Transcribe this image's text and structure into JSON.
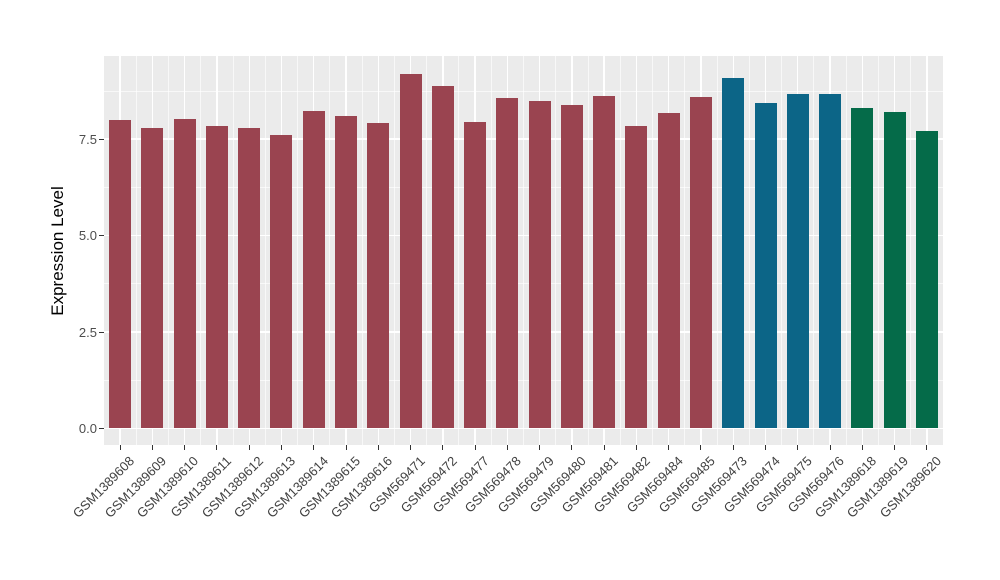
{
  "chart_data": {
    "type": "bar",
    "title": "",
    "xlabel": "",
    "ylabel": "Expression Level",
    "y_ticks": [
      0.0,
      2.5,
      5.0,
      7.5
    ],
    "y_tick_labels": [
      "0.0",
      "2.5",
      "5.0",
      "7.5"
    ],
    "y_minor_ticks": [
      1.25,
      3.75,
      6.25,
      8.75
    ],
    "ylim": [
      -0.45,
      9.65
    ],
    "grid": "white major and minor gridlines on gray panel",
    "legend_position": "none",
    "group_colors": {
      "maroon": "#9A4450",
      "teal": "#0C6587",
      "green": "#056B49"
    },
    "bars": [
      {
        "label": "GSM1389608",
        "value": 8.0,
        "group": "maroon"
      },
      {
        "label": "GSM1389609",
        "value": 7.8,
        "group": "maroon"
      },
      {
        "label": "GSM1389610",
        "value": 8.02,
        "group": "maroon"
      },
      {
        "label": "GSM1389611",
        "value": 7.85,
        "group": "maroon"
      },
      {
        "label": "GSM1389612",
        "value": 7.8,
        "group": "maroon"
      },
      {
        "label": "GSM1389613",
        "value": 7.6,
        "group": "maroon"
      },
      {
        "label": "GSM1389614",
        "value": 8.22,
        "group": "maroon"
      },
      {
        "label": "GSM1389615",
        "value": 8.1,
        "group": "maroon"
      },
      {
        "label": "GSM1389616",
        "value": 7.92,
        "group": "maroon"
      },
      {
        "label": "GSM569471",
        "value": 9.18,
        "group": "maroon"
      },
      {
        "label": "GSM569472",
        "value": 8.88,
        "group": "maroon"
      },
      {
        "label": "GSM569477",
        "value": 7.95,
        "group": "maroon"
      },
      {
        "label": "GSM569478",
        "value": 8.58,
        "group": "maroon"
      },
      {
        "label": "GSM569479",
        "value": 8.5,
        "group": "maroon"
      },
      {
        "label": "GSM569480",
        "value": 8.4,
        "group": "maroon"
      },
      {
        "label": "GSM569481",
        "value": 8.62,
        "group": "maroon"
      },
      {
        "label": "GSM569482",
        "value": 7.85,
        "group": "maroon"
      },
      {
        "label": "GSM569484",
        "value": 8.17,
        "group": "maroon"
      },
      {
        "label": "GSM569485",
        "value": 8.6,
        "group": "maroon"
      },
      {
        "label": "GSM569473",
        "value": 9.08,
        "group": "teal"
      },
      {
        "label": "GSM569474",
        "value": 8.43,
        "group": "teal"
      },
      {
        "label": "GSM569475",
        "value": 8.66,
        "group": "teal"
      },
      {
        "label": "GSM569476",
        "value": 8.66,
        "group": "teal"
      },
      {
        "label": "GSM1389618",
        "value": 8.3,
        "group": "green"
      },
      {
        "label": "GSM1389619",
        "value": 8.2,
        "group": "green"
      },
      {
        "label": "GSM1389620",
        "value": 7.72,
        "group": "green"
      }
    ]
  },
  "colors": {
    "page_bg": "#FFFFFF",
    "panel_bg": "#EBEBEB",
    "grid_major": "#FFFFFF",
    "grid_minor": "rgba(255,255,255,0.65)",
    "axis_text": "#4D4D4D",
    "x_axis_text": "#404040",
    "tick_mark": "#333333",
    "axis_title": "#000000"
  }
}
